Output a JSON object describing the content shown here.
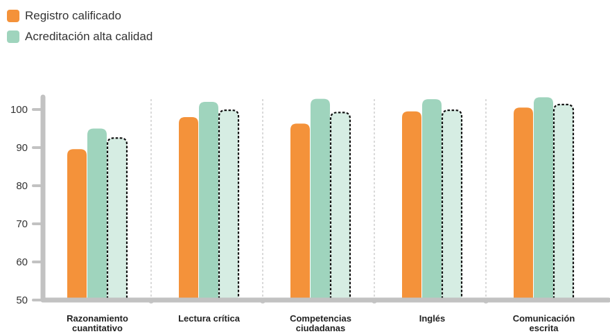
{
  "chart_data": {
    "type": "bar",
    "title": "",
    "xlabel": "",
    "ylabel": "",
    "ylim": [
      50,
      105
    ],
    "yticks": [
      "50",
      "60",
      "70",
      "80",
      "90",
      "100"
    ],
    "categories": [
      [
        "Razonamiento",
        "cuantitativo"
      ],
      [
        "Lectura crítica"
      ],
      [
        "Competencias",
        "ciudadanas"
      ],
      [
        "Inglés"
      ],
      [
        "Comunicación",
        "escrita"
      ]
    ],
    "series": [
      {
        "name": "Registro calificado",
        "color": "#f4923a",
        "style": "solid",
        "values": [
          89.6,
          98.0,
          96.3,
          99.5,
          100.5
        ]
      },
      {
        "name": "Acreditación alta calidad",
        "color": "#9fd4bd",
        "style": "solid",
        "values": [
          95.0,
          102.0,
          102.8,
          102.7,
          103.2
        ]
      },
      {
        "name": "",
        "color": "#d6ede3",
        "style": "dashed",
        "values": [
          92.5,
          99.8,
          99.2,
          99.8,
          101.3
        ]
      }
    ],
    "legend": "top-left",
    "grid": false
  },
  "legend": [
    {
      "label": "Registro calificado",
      "color": "#f4923a"
    },
    {
      "label": "Acreditación alta calidad",
      "color": "#9fd4bd"
    }
  ]
}
